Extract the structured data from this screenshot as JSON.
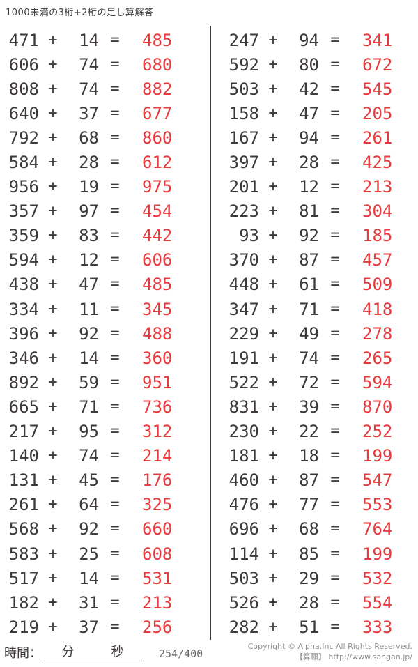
{
  "title": "1000未満の3桁+2桁の足し算解答",
  "operator": "+",
  "equals": "=",
  "colors": {
    "text": "#3e3a39",
    "answer": "#e83a3d",
    "muted": "#8f8f8f"
  },
  "columns": {
    "left": {
      "problems": [
        [
          "471",
          "14",
          "485"
        ],
        [
          "606",
          "74",
          "680"
        ],
        [
          "808",
          "74",
          "882"
        ],
        [
          "640",
          "37",
          "677"
        ],
        [
          "792",
          "68",
          "860"
        ],
        [
          "584",
          "28",
          "612"
        ],
        [
          "956",
          "19",
          "975"
        ],
        [
          "357",
          "97",
          "454"
        ],
        [
          "359",
          "83",
          "442"
        ],
        [
          "594",
          "12",
          "606"
        ],
        [
          "438",
          "47",
          "485"
        ],
        [
          "334",
          "11",
          "345"
        ],
        [
          "396",
          "92",
          "488"
        ],
        [
          "346",
          "14",
          "360"
        ],
        [
          "892",
          "59",
          "951"
        ],
        [
          "665",
          "71",
          "736"
        ],
        [
          "217",
          "95",
          "312"
        ],
        [
          "140",
          "74",
          "214"
        ],
        [
          "131",
          "45",
          "176"
        ],
        [
          "261",
          "64",
          "325"
        ],
        [
          "568",
          "92",
          "660"
        ],
        [
          "583",
          "25",
          "608"
        ],
        [
          "517",
          "14",
          "531"
        ],
        [
          "182",
          "31",
          "213"
        ],
        [
          "219",
          "37",
          "256"
        ]
      ]
    },
    "right": {
      "problems": [
        [
          "247",
          "94",
          "341"
        ],
        [
          "592",
          "80",
          "672"
        ],
        [
          "503",
          "42",
          "545"
        ],
        [
          "158",
          "47",
          "205"
        ],
        [
          "167",
          "94",
          "261"
        ],
        [
          "397",
          "28",
          "425"
        ],
        [
          "201",
          "12",
          "213"
        ],
        [
          "223",
          "81",
          "304"
        ],
        [
          "93",
          "92",
          "185"
        ],
        [
          "370",
          "87",
          "457"
        ],
        [
          "448",
          "61",
          "509"
        ],
        [
          "347",
          "71",
          "418"
        ],
        [
          "229",
          "49",
          "278"
        ],
        [
          "191",
          "74",
          "265"
        ],
        [
          "522",
          "72",
          "594"
        ],
        [
          "831",
          "39",
          "870"
        ],
        [
          "230",
          "22",
          "252"
        ],
        [
          "181",
          "18",
          "199"
        ],
        [
          "460",
          "87",
          "547"
        ],
        [
          "476",
          "77",
          "553"
        ],
        [
          "696",
          "68",
          "764"
        ],
        [
          "114",
          "85",
          "199"
        ],
        [
          "503",
          "29",
          "532"
        ],
        [
          "526",
          "28",
          "554"
        ],
        [
          "282",
          "51",
          "333"
        ]
      ]
    }
  },
  "footer": {
    "time_label": "時間：",
    "minutes_label": "分",
    "seconds_label": "秒",
    "page_indicator": "254/400",
    "copyright_line1": "Copyright © Alpha.Inc All Rights Reserved.",
    "copyright_line2": "【算願】 http://www.sangan.jp/"
  }
}
